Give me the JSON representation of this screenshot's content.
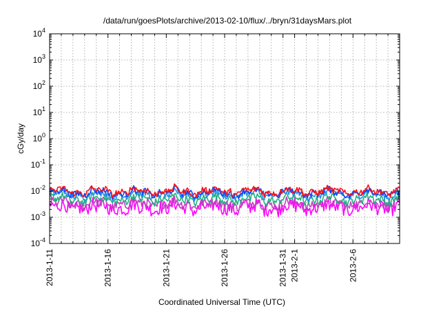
{
  "chart_data": {
    "type": "line",
    "title": "/data/run/goesPlots/archive/2013-02-10/flux/../bryn/31daysMars.plot",
    "xlabel": "Coordinated Universal Time (UTC)",
    "ylabel": "cGy/day",
    "yscale": "log",
    "ylim": [
      0.0001,
      10000
    ],
    "y_ticks": [
      {
        "value": 0.0001,
        "base": "10",
        "exp": "-4"
      },
      {
        "value": 0.001,
        "base": "10",
        "exp": "-3"
      },
      {
        "value": 0.01,
        "base": "10",
        "exp": "-2"
      },
      {
        "value": 0.1,
        "base": "10",
        "exp": "-1"
      },
      {
        "value": 1,
        "base": "10",
        "exp": "0"
      },
      {
        "value": 10,
        "base": "10",
        "exp": "1"
      },
      {
        "value": 100,
        "base": "10",
        "exp": "2"
      },
      {
        "value": 1000,
        "base": "10",
        "exp": "3"
      },
      {
        "value": 10000,
        "base": "10",
        "exp": "4"
      }
    ],
    "xlim": [
      "2013-01-11",
      "2013-02-10"
    ],
    "x_ticks": [
      {
        "value": "2013-01-11",
        "label": "2013-1-11"
      },
      {
        "value": "2013-01-16",
        "label": "2013-1-16"
      },
      {
        "value": "2013-01-21",
        "label": "2013-1-21"
      },
      {
        "value": "2013-01-26",
        "label": "2013-1-26"
      },
      {
        "value": "2013-01-31",
        "label": "2013-1-31"
      },
      {
        "value": "2013-02-01",
        "label": "2013-2-1"
      },
      {
        "value": "2013-02-06",
        "label": "2013-2-6"
      }
    ],
    "grid": true,
    "series": [
      {
        "color": "#ff1010",
        "base": 0.0098,
        "amp": 0.12
      },
      {
        "color": "#1040ff",
        "base": 0.0088,
        "amp": 0.12
      },
      {
        "color": "#2090e0",
        "base": 0.0074,
        "amp": 0.13
      },
      {
        "color": "#20b080",
        "base": 0.0049,
        "amp": 0.16
      },
      {
        "color": "#c040c0",
        "base": 0.0033,
        "amp": 0.18
      },
      {
        "color": "#ff00ff",
        "base": 0.0024,
        "amp": 0.26
      }
    ]
  }
}
